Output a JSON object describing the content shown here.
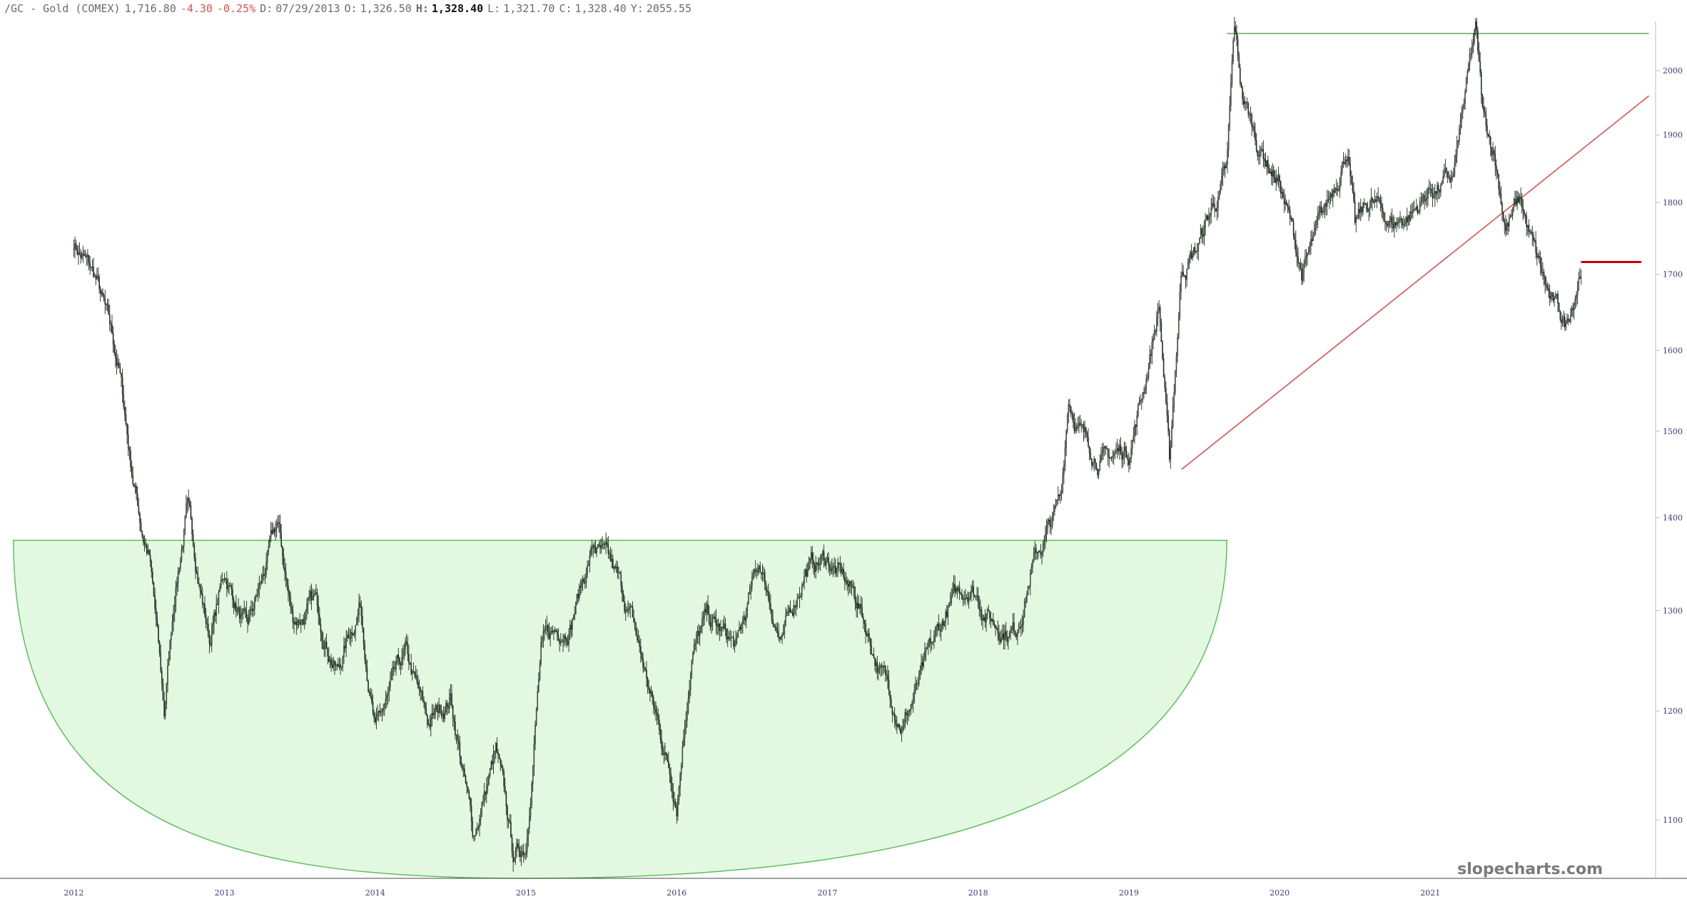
{
  "header": {
    "symbol": "/GC - Gold (COMEX)",
    "last": "1,716.80",
    "change": "-4.30",
    "change_pct": "-0.25%",
    "date_label": "D:",
    "date": "07/29/2013",
    "open_label": "O:",
    "open": "1,326.50",
    "high_label": "H:",
    "high": "1,328.40",
    "low_label": "L:",
    "low": "1,321.70",
    "close_label": "C:",
    "close": "1,328.40",
    "y_label": "Y:",
    "y": "2055.55"
  },
  "watermark": "slopecharts.com",
  "colors": {
    "candle": "#1f2a1f",
    "bowl_fill": "#e3f8e1",
    "bowl_stroke": "#5cc05c",
    "resistance": "#3c9a3c",
    "trendline": "#e05050",
    "price_marker": "#cc0000",
    "axis": "#444444"
  },
  "chart_data": {
    "type": "line",
    "style": "candlestick",
    "series": [
      {
        "x": [
          2012.0,
          2012.15,
          2012.3,
          2012.38,
          2012.45,
          2012.5,
          2012.6,
          2012.67,
          2012.75,
          2012.9,
          2013.0,
          2013.15,
          2013.25,
          2013.35,
          2013.45,
          2013.6,
          2013.75,
          2013.9,
          2014.0,
          2014.2,
          2014.35,
          2014.5,
          2014.65,
          2014.8,
          2014.92,
          2015.0,
          2015.1,
          2015.3,
          2015.45,
          2015.6,
          2015.7,
          2015.85,
          2016.0,
          2016.1,
          2016.2,
          2016.4,
          2016.55,
          2016.7,
          2016.85,
          2017.0,
          2017.2,
          2017.35,
          2017.5,
          2017.65,
          2017.8,
          2017.95,
          2018.1,
          2018.25,
          2018.35,
          2018.48,
          2018.55,
          2018.6,
          2018.7,
          2018.85,
          2019.0,
          2019.1,
          2019.2,
          2019.27,
          2019.35,
          2019.45,
          2019.55,
          2019.65,
          2019.7,
          2019.75,
          2019.85,
          2020.0,
          2020.15,
          2020.3,
          2020.45,
          2020.5,
          2020.6,
          2020.75,
          2020.9,
          2021.0,
          2021.15,
          2021.3,
          2021.35,
          2021.42,
          2021.5,
          2021.6,
          2021.7,
          2021.8,
          2021.9,
          2022.0
        ],
        "values": [
          1745,
          1690,
          1575,
          1460,
          1390,
          1360,
          1195,
          1320,
          1410,
          1270,
          1340,
          1275,
          1330,
          1390,
          1290,
          1305,
          1240,
          1310,
          1180,
          1250,
          1185,
          1215,
          1085,
          1160,
          1065,
          1080,
          1260,
          1295,
          1370,
          1330,
          1290,
          1200,
          1120,
          1260,
          1290,
          1260,
          1350,
          1265,
          1345,
          1355,
          1310,
          1240,
          1190,
          1240,
          1300,
          1330,
          1290,
          1280,
          1345,
          1390,
          1420,
          1545,
          1490,
          1465,
          1480,
          1555,
          1660,
          1455,
          1710,
          1735,
          1790,
          1840,
          2060,
          1960,
          1890,
          1830,
          1700,
          1780,
          1890,
          1760,
          1800,
          1770,
          1790,
          1820,
          1830,
          2060,
          1920,
          1880,
          1770,
          1800,
          1720,
          1660,
          1630,
          1716.8
        ]
      }
    ],
    "x_ticks": [
      "2012",
      "2013",
      "2014",
      "2015",
      "2016",
      "2017",
      "2018",
      "2019",
      "2020",
      "2021"
    ],
    "y_ticks": [
      1100,
      1200,
      1300,
      1400,
      1500,
      1600,
      1700,
      1800,
      1900,
      2000
    ],
    "xlim": [
      2011.7,
      2022.4
    ],
    "ylim": [
      1050,
      2080
    ],
    "y_scale": "log",
    "y_axis_side": "right",
    "grid": false,
    "annotations": [
      {
        "type": "bowl",
        "x_range": [
          2011.6,
          2019.65
        ],
        "top": 1375,
        "bottom_x": 2015.0,
        "bottom_y": 1050
      },
      {
        "type": "horizontal_line",
        "x_range": [
          2019.65,
          2022.45
        ],
        "y": 2060
      },
      {
        "type": "trendline",
        "from": [
          2019.35,
          1455
        ],
        "to": [
          2022.45,
          1960
        ]
      },
      {
        "type": "price_marker",
        "x_from": 2022.0,
        "y": 1716.8
      }
    ]
  }
}
